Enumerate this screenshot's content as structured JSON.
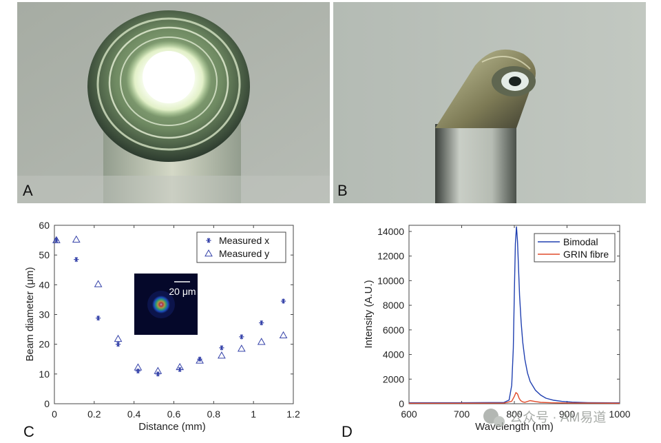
{
  "panels": {
    "a": {
      "label": "A"
    },
    "b": {
      "label": "B"
    },
    "c": {
      "label": "C"
    },
    "d": {
      "label": "D"
    }
  },
  "watermark": {
    "text": "公众号 · AM易道"
  },
  "chart_data": [
    {
      "type": "scatter",
      "panel": "C",
      "xlabel": "Distance (mm)",
      "ylabel": "Beam diameter (μm)",
      "xlim": [
        0,
        1.2
      ],
      "ylim": [
        0,
        60
      ],
      "xticks": [
        "0",
        "0.2",
        "0.4",
        "0.6",
        "0.8",
        "1",
        "1.2"
      ],
      "yticks": [
        "0",
        "10",
        "20",
        "30",
        "40",
        "50",
        "60"
      ],
      "grid": false,
      "legend": "top-right",
      "series": [
        {
          "name": "Measured x",
          "marker": "asterisk",
          "color": "#3340a8",
          "x": [
            0.01,
            0.11,
            0.22,
            0.32,
            0.42,
            0.52,
            0.63,
            0.73,
            0.84,
            0.94,
            1.04,
            1.15
          ],
          "y": [
            55,
            48.5,
            28.8,
            20,
            11,
            10,
            11.5,
            15,
            18.8,
            22.5,
            27.2,
            34.5
          ]
        },
        {
          "name": "Measured y",
          "marker": "triangle",
          "color": "#3340a8",
          "x": [
            0.01,
            0.11,
            0.22,
            0.32,
            0.42,
            0.52,
            0.63,
            0.73,
            0.84,
            0.94,
            1.04,
            1.15
          ],
          "y": [
            55,
            55.2,
            40.2,
            21.8,
            12.2,
            11,
            12.3,
            14.5,
            16.2,
            18.5,
            20.8,
            23
          ]
        }
      ],
      "inset": {
        "type": "heatmap",
        "scalebar_label": "20 μm"
      }
    },
    {
      "type": "line",
      "panel": "D",
      "xlabel": "Wavelength (nm)",
      "ylabel": "Intensity (A.U.)",
      "xlim": [
        600,
        1000
      ],
      "ylim": [
        0,
        14500
      ],
      "xticks": [
        "600",
        "700",
        "800",
        "900",
        "1000"
      ],
      "yticks": [
        "0",
        "2000",
        "4000",
        "6000",
        "8000",
        "10000",
        "12000",
        "14000"
      ],
      "grid": false,
      "legend": "top-right",
      "series": [
        {
          "name": "Bimodal",
          "color": "#1f3fb0",
          "x": [
            600,
            700,
            780,
            790,
            795,
            798,
            800,
            802,
            804,
            806,
            808,
            810,
            813,
            816,
            820,
            825,
            830,
            840,
            850,
            860,
            875,
            890,
            910,
            940,
            970,
            1000
          ],
          "y": [
            80,
            80,
            100,
            300,
            1500,
            4500,
            9000,
            13000,
            14400,
            13200,
            11000,
            8800,
            6600,
            5000,
            3600,
            2500,
            1800,
            1100,
            700,
            450,
            280,
            190,
            130,
            90,
            80,
            70
          ]
        },
        {
          "name": "GRIN fibre",
          "color": "#e04a2a",
          "x": [
            600,
            700,
            780,
            795,
            800,
            803,
            806,
            809,
            812,
            816,
            820,
            830,
            840,
            850,
            870,
            900,
            950,
            1000
          ],
          "y": [
            40,
            40,
            50,
            200,
            600,
            900,
            800,
            450,
            250,
            150,
            120,
            250,
            180,
            110,
            80,
            60,
            50,
            40
          ]
        }
      ]
    }
  ]
}
